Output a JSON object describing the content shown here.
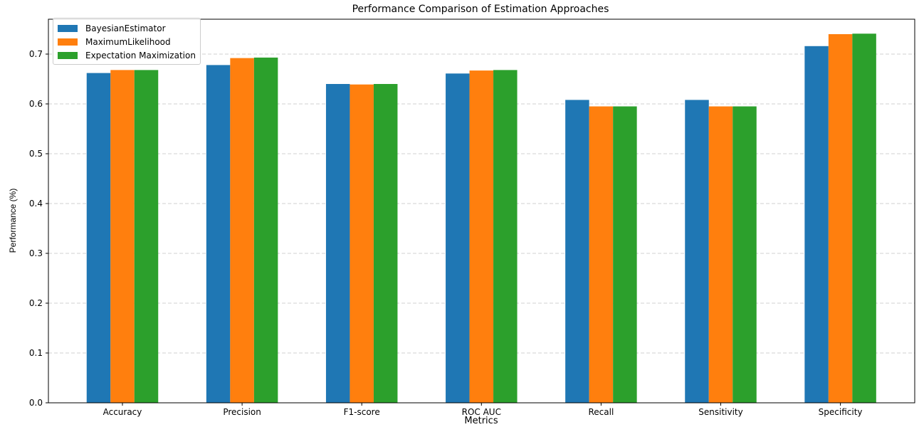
{
  "chart_data": {
    "type": "bar",
    "title": "Performance Comparison of Estimation Approaches",
    "xlabel": "Metrics",
    "ylabel": "Performance (%)",
    "categories": [
      "Accuracy",
      "Precision",
      "F1-score",
      "ROC AUC",
      "Recall",
      "Sensitivity",
      "Specificity"
    ],
    "series": [
      {
        "name": "BayesianEstimator",
        "color": "#1f77b4",
        "values": [
          0.662,
          0.678,
          0.64,
          0.661,
          0.608,
          0.608,
          0.716
        ]
      },
      {
        "name": "MaximumLikelihood",
        "color": "#ff7f0e",
        "values": [
          0.668,
          0.692,
          0.639,
          0.667,
          0.595,
          0.595,
          0.74
        ]
      },
      {
        "name": "Expectation Maximization",
        "color": "#2ca02c",
        "values": [
          0.668,
          0.693,
          0.64,
          0.668,
          0.595,
          0.595,
          0.741
        ]
      }
    ],
    "yticks": [
      "0.0",
      "0.1",
      "0.2",
      "0.3",
      "0.4",
      "0.5",
      "0.6",
      "0.7"
    ],
    "ylim": [
      0,
      0.77
    ],
    "grid": "y-dashed",
    "legend_position": "top-left"
  }
}
